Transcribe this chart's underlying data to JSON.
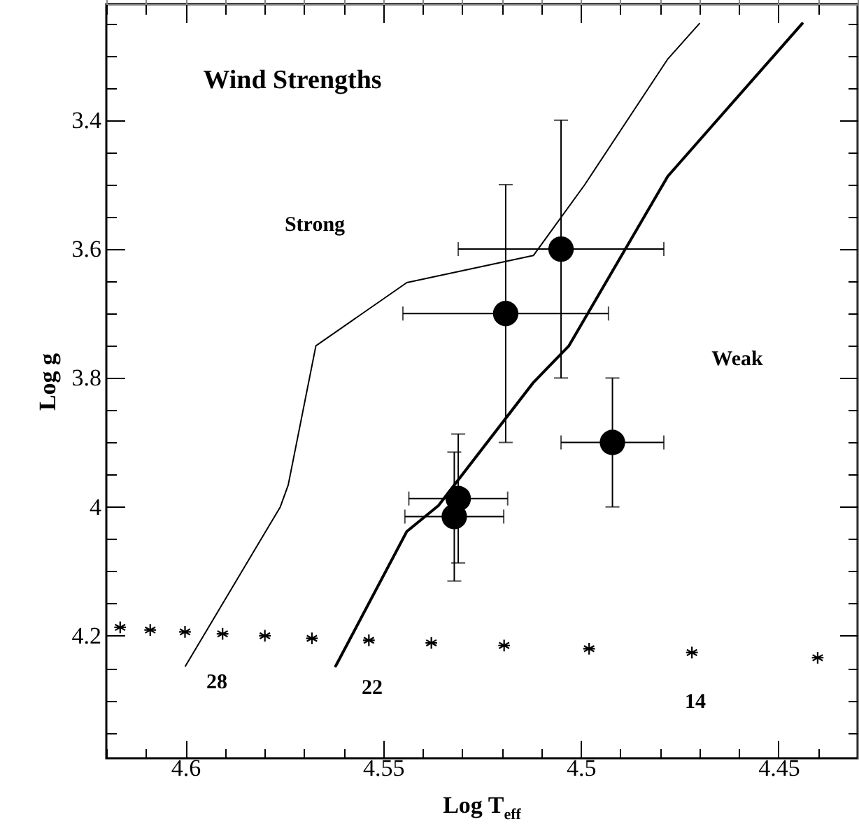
{
  "chart_data": {
    "type": "scatter",
    "xlabel": "Log T$_{eff}$",
    "ylabel": "Log g",
    "annotations": [
      "Wind Strengths",
      "Strong",
      "Weak",
      "28",
      "22",
      "14"
    ],
    "xlim": [
      4.62,
      4.43
    ],
    "ylim": [
      4.39,
      3.22
    ],
    "xticks": [
      {
        "value": 4.62,
        "label": null
      },
      {
        "value": 4.61,
        "label": null
      },
      4.6,
      {
        "value": 4.59,
        "label": null
      },
      {
        "value": 4.58,
        "label": null
      },
      {
        "value": 4.57,
        "label": null
      },
      {
        "value": 4.56,
        "label": null
      },
      4.55,
      {
        "value": 4.54,
        "label": null
      },
      {
        "value": 4.53,
        "label": null
      },
      {
        "value": 4.52,
        "label": null
      },
      {
        "value": 4.51,
        "label": null
      },
      4.5,
      {
        "value": 4.49,
        "label": null
      },
      {
        "value": 4.48,
        "label": null
      },
      {
        "value": 4.47,
        "label": null
      },
      {
        "value": 4.46,
        "label": null
      },
      4.45,
      {
        "value": 4.44,
        "label": null
      }
    ],
    "yticks": [
      {
        "value": 3.25,
        "label": null
      },
      {
        "value": 3.3,
        "label": null
      },
      {
        "value": 3.35,
        "label": null
      },
      3.4,
      {
        "value": 3.45,
        "label": null
      },
      {
        "value": 3.5,
        "label": null
      },
      {
        "value": 3.55,
        "label": null
      },
      3.6,
      {
        "value": 3.65,
        "label": null
      },
      {
        "value": 3.7,
        "label": null
      },
      {
        "value": 3.75,
        "label": null
      },
      3.8,
      {
        "value": 3.85,
        "label": null
      },
      {
        "value": 3.9,
        "label": null
      },
      {
        "value": 3.95,
        "label": null
      },
      4,
      {
        "value": 4.05,
        "label": null
      },
      {
        "value": 4.1,
        "label": null
      },
      {
        "value": 4.15,
        "label": null
      },
      4.2,
      {
        "value": 4.25,
        "label": null
      },
      {
        "value": 4.3,
        "label": null
      },
      {
        "value": 4.35,
        "label": null
      }
    ],
    "grid": false,
    "series": [
      {
        "type": "line",
        "color": "#000000",
        "marker": "none",
        "x": [
          4.6,
          4.576,
          4.574,
          4.567,
          4.544,
          4.512,
          4.499,
          4.478,
          4.47
        ],
        "values": [
          4.247,
          4.0,
          3.966,
          3.75,
          3.652,
          3.61,
          3.5,
          3.305,
          3.25
        ]
      },
      {
        "type": "line",
        "color": "#000000",
        "marker": "none",
        "x": [
          4.562,
          4.544,
          4.536,
          4.512,
          4.503,
          4.478,
          4.444
        ],
        "values": [
          4.247,
          4.038,
          3.998,
          3.807,
          3.75,
          3.487,
          3.25
        ]
      },
      {
        "color": "#000000",
        "marker": "circle",
        "x": [
          4.505,
          4.519,
          4.492,
          4.531,
          4.532
        ],
        "values": [
          3.6,
          3.7,
          3.9,
          3.987,
          4.015
        ],
        "errors": [
          0.2,
          0.2,
          0.1,
          0.1,
          0.1
        ],
        "xerrors": [
          0.026,
          0.026,
          0.013,
          0.0125,
          0.0125
        ]
      },
      {
        "color": "#000000",
        "marker": "cross",
        "x": [
          4.6165,
          4.6089,
          4.6001,
          4.5906,
          4.5799,
          4.568,
          4.5536,
          4.5378,
          4.5194,
          4.4979,
          4.4719,
          4.4401
        ],
        "values": [
          4.187,
          4.191,
          4.194,
          4.197,
          4.2,
          4.204,
          4.207,
          4.211,
          4.215,
          4.22,
          4.226,
          4.234
        ]
      }
    ]
  }
}
